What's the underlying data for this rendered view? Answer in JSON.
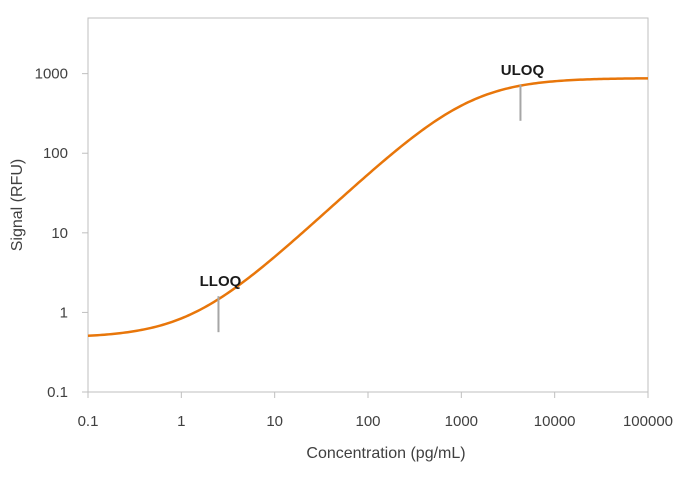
{
  "chart_data": {
    "type": "line",
    "title": "",
    "xlabel": "Concentration (pg/mL)",
    "ylabel": "Signal (RFU)",
    "x_scale": "log",
    "y_scale": "log",
    "xlim": [
      0.1,
      100000
    ],
    "ylim": [
      0.1,
      5000
    ],
    "x_ticks": [
      0.1,
      1,
      10,
      100,
      1000,
      10000,
      100000
    ],
    "x_tick_labels": [
      "0.1",
      "1",
      "10",
      "100",
      "1000",
      "10000",
      "100000"
    ],
    "y_ticks": [
      0.1,
      1,
      10,
      100,
      1000
    ],
    "y_tick_labels": [
      "0.1",
      "1",
      "10",
      "100",
      "1000"
    ],
    "grid": false,
    "legend": "none",
    "series": [
      {
        "color": "#E8760A",
        "model": "4PL",
        "params": {
          "bottom": 0.48,
          "top": 880,
          "ec50": 1200,
          "hill": 1.1
        },
        "x": [
          0.1,
          0.3,
          1,
          3,
          10,
          30,
          100,
          300,
          1000,
          3000,
          10000,
          30000,
          100000
        ],
        "y": [
          0.5,
          0.53,
          0.66,
          1.1,
          2.5,
          6.8,
          20,
          62,
          165,
          380,
          620,
          760,
          830
        ]
      }
    ],
    "annotations": [
      {
        "label": "LLOQ",
        "x": 2.5,
        "y": 0.95
      },
      {
        "label": "ULOQ",
        "x": 4300,
        "y": 430
      }
    ],
    "colors": {
      "axis": "#bfbfbf",
      "text": "#404040",
      "marker": "#a6a6a6"
    }
  }
}
